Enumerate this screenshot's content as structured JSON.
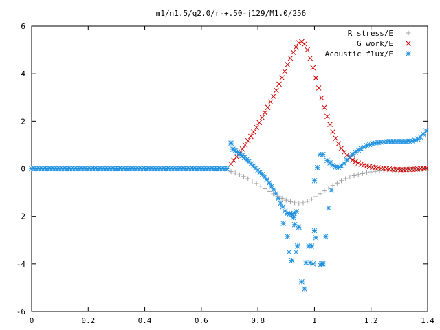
{
  "chart_data": {
    "type": "scatter",
    "title": "m1/n1.5/q2.0/r-+.50-j129/M1.0/256",
    "xlabel": "",
    "ylabel": "",
    "xlim": [
      0,
      1.4
    ],
    "ylim": [
      -6,
      6
    ],
    "x_ticks": [
      "0",
      "0.2",
      "0.4",
      "0.6",
      "0.8",
      "1",
      "1.2",
      "1.4"
    ],
    "y_ticks": [
      "6",
      "4",
      "2",
      "0",
      "-2",
      "-4",
      "-6"
    ],
    "x_tick_values": [
      0,
      0.2,
      0.4,
      0.6,
      0.8,
      1.0,
      1.2,
      1.4
    ],
    "y_tick_values": [
      6,
      4,
      2,
      0,
      -2,
      -4,
      -6
    ],
    "grid": false,
    "legend_position": "top-right",
    "series": [
      {
        "name": "R stress/E",
        "marker": "plus",
        "color": "#a0a0a0",
        "points": [
          [
            0.705,
            -0.12
          ],
          [
            0.72,
            -0.18
          ],
          [
            0.735,
            -0.25
          ],
          [
            0.75,
            -0.33
          ],
          [
            0.765,
            -0.42
          ],
          [
            0.78,
            -0.52
          ],
          [
            0.795,
            -0.62
          ],
          [
            0.81,
            -0.73
          ],
          [
            0.825,
            -0.84
          ],
          [
            0.84,
            -0.95
          ],
          [
            0.855,
            -1.05
          ],
          [
            0.87,
            -1.15
          ],
          [
            0.885,
            -1.24
          ],
          [
            0.9,
            -1.32
          ],
          [
            0.915,
            -1.39
          ],
          [
            0.93,
            -1.43
          ],
          [
            0.945,
            -1.45
          ],
          [
            0.96,
            -1.43
          ],
          [
            0.975,
            -1.37
          ],
          [
            0.99,
            -1.28
          ],
          [
            1.005,
            -1.17
          ],
          [
            1.02,
            -1.05
          ],
          [
            1.035,
            -0.93
          ],
          [
            1.05,
            -0.81
          ],
          [
            1.065,
            -0.7
          ],
          [
            1.08,
            -0.6
          ],
          [
            1.095,
            -0.5
          ],
          [
            1.11,
            -0.42
          ],
          [
            1.125,
            -0.35
          ],
          [
            1.14,
            -0.29
          ],
          [
            1.155,
            -0.24
          ],
          [
            1.17,
            -0.2
          ],
          [
            1.185,
            -0.16
          ],
          [
            1.2,
            -0.13
          ],
          [
            1.215,
            -0.11
          ],
          [
            1.23,
            -0.09
          ],
          [
            1.245,
            -0.07
          ],
          [
            1.26,
            -0.06
          ],
          [
            1.275,
            -0.05
          ],
          [
            1.29,
            -0.04
          ],
          [
            1.305,
            -0.03
          ],
          [
            1.32,
            -0.03
          ],
          [
            1.335,
            -0.02
          ],
          [
            1.35,
            -0.02
          ],
          [
            1.365,
            -0.02
          ],
          [
            1.38,
            -0.01
          ],
          [
            1.395,
            -0.01
          ]
        ]
      },
      {
        "name": "G work/E",
        "marker": "cross",
        "color": "#d00000",
        "points": [
          [
            0.705,
            0.2
          ],
          [
            0.715,
            0.35
          ],
          [
            0.725,
            0.5
          ],
          [
            0.735,
            0.66
          ],
          [
            0.745,
            0.83
          ],
          [
            0.755,
            1.0
          ],
          [
            0.765,
            1.18
          ],
          [
            0.775,
            1.36
          ],
          [
            0.785,
            1.55
          ],
          [
            0.795,
            1.74
          ],
          [
            0.805,
            1.94
          ],
          [
            0.815,
            2.15
          ],
          [
            0.825,
            2.36
          ],
          [
            0.835,
            2.58
          ],
          [
            0.845,
            2.81
          ],
          [
            0.855,
            3.05
          ],
          [
            0.865,
            3.3
          ],
          [
            0.875,
            3.56
          ],
          [
            0.885,
            3.83
          ],
          [
            0.895,
            4.1
          ],
          [
            0.905,
            4.38
          ],
          [
            0.915,
            4.65
          ],
          [
            0.925,
            4.9
          ],
          [
            0.935,
            5.12
          ],
          [
            0.945,
            5.3
          ],
          [
            0.955,
            5.35
          ],
          [
            0.965,
            5.25
          ],
          [
            0.975,
            5.0
          ],
          [
            0.985,
            4.65
          ],
          [
            0.995,
            4.25
          ],
          [
            1.005,
            3.82
          ],
          [
            1.015,
            3.4
          ],
          [
            1.025,
            2.98
          ],
          [
            1.035,
            2.58
          ],
          [
            1.045,
            2.2
          ],
          [
            1.055,
            1.86
          ],
          [
            1.065,
            1.55
          ],
          [
            1.075,
            1.28
          ],
          [
            1.085,
            1.05
          ],
          [
            1.095,
            0.86
          ],
          [
            1.105,
            0.7
          ],
          [
            1.115,
            0.57
          ],
          [
            1.125,
            0.46
          ],
          [
            1.135,
            0.37
          ],
          [
            1.145,
            0.3
          ],
          [
            1.155,
            0.24
          ],
          [
            1.165,
            0.19
          ],
          [
            1.175,
            0.15
          ],
          [
            1.185,
            0.12
          ],
          [
            1.195,
            0.09
          ],
          [
            1.205,
            0.07
          ],
          [
            1.215,
            0.05
          ],
          [
            1.225,
            0.04
          ],
          [
            1.235,
            0.02
          ],
          [
            1.245,
            0.01
          ],
          [
            1.255,
            0.0
          ],
          [
            1.265,
            -0.01
          ],
          [
            1.275,
            -0.02
          ],
          [
            1.285,
            -0.03
          ],
          [
            1.295,
            -0.03
          ],
          [
            1.305,
            -0.04
          ],
          [
            1.315,
            -0.04
          ],
          [
            1.325,
            -0.03
          ],
          [
            1.335,
            -0.03
          ],
          [
            1.345,
            -0.02
          ],
          [
            1.355,
            -0.02
          ],
          [
            1.365,
            -0.01
          ],
          [
            1.375,
            0.0
          ],
          [
            1.385,
            0.01
          ],
          [
            1.395,
            0.02
          ]
        ]
      },
      {
        "name": "Acoustic flux/E",
        "marker": "star",
        "color": "#1e90e0",
        "points": [
          [
            0.0,
            0.0
          ],
          [
            0.01,
            0.0
          ],
          [
            0.02,
            0.0
          ],
          [
            0.03,
            0.0
          ],
          [
            0.04,
            0.0
          ],
          [
            0.05,
            0.0
          ],
          [
            0.06,
            0.0
          ],
          [
            0.07,
            0.0
          ],
          [
            0.08,
            0.0
          ],
          [
            0.09,
            0.0
          ],
          [
            0.1,
            0.0
          ],
          [
            0.11,
            0.0
          ],
          [
            0.12,
            0.0
          ],
          [
            0.13,
            0.0
          ],
          [
            0.14,
            0.0
          ],
          [
            0.15,
            0.0
          ],
          [
            0.16,
            0.0
          ],
          [
            0.17,
            0.0
          ],
          [
            0.18,
            0.0
          ],
          [
            0.19,
            0.0
          ],
          [
            0.2,
            0.0
          ],
          [
            0.21,
            0.0
          ],
          [
            0.22,
            0.0
          ],
          [
            0.23,
            0.0
          ],
          [
            0.24,
            0.0
          ],
          [
            0.25,
            0.0
          ],
          [
            0.26,
            0.0
          ],
          [
            0.27,
            0.0
          ],
          [
            0.28,
            0.0
          ],
          [
            0.29,
            0.0
          ],
          [
            0.3,
            0.0
          ],
          [
            0.31,
            0.0
          ],
          [
            0.32,
            0.0
          ],
          [
            0.33,
            0.0
          ],
          [
            0.34,
            0.0
          ],
          [
            0.35,
            0.0
          ],
          [
            0.36,
            0.0
          ],
          [
            0.37,
            0.0
          ],
          [
            0.38,
            0.0
          ],
          [
            0.39,
            0.0
          ],
          [
            0.4,
            0.0
          ],
          [
            0.41,
            0.0
          ],
          [
            0.42,
            0.0
          ],
          [
            0.43,
            0.0
          ],
          [
            0.44,
            0.0
          ],
          [
            0.45,
            0.0
          ],
          [
            0.46,
            0.0
          ],
          [
            0.47,
            0.0
          ],
          [
            0.48,
            0.0
          ],
          [
            0.49,
            0.0
          ],
          [
            0.5,
            0.0
          ],
          [
            0.51,
            0.0
          ],
          [
            0.52,
            0.0
          ],
          [
            0.53,
            0.0
          ],
          [
            0.54,
            0.0
          ],
          [
            0.55,
            0.0
          ],
          [
            0.56,
            0.0
          ],
          [
            0.57,
            0.0
          ],
          [
            0.58,
            0.0
          ],
          [
            0.59,
            0.0
          ],
          [
            0.6,
            0.0
          ],
          [
            0.61,
            0.0
          ],
          [
            0.62,
            0.0
          ],
          [
            0.63,
            0.0
          ],
          [
            0.64,
            0.0
          ],
          [
            0.65,
            0.0
          ],
          [
            0.66,
            0.0
          ],
          [
            0.67,
            0.0
          ],
          [
            0.68,
            0.0
          ],
          [
            0.69,
            0.0
          ],
          [
            0.705,
            1.08
          ],
          [
            0.712,
            0.82
          ],
          [
            0.72,
            0.76
          ],
          [
            0.728,
            0.7
          ],
          [
            0.736,
            0.62
          ],
          [
            0.744,
            0.55
          ],
          [
            0.752,
            0.47
          ],
          [
            0.76,
            0.38
          ],
          [
            0.768,
            0.3
          ],
          [
            0.776,
            0.21
          ],
          [
            0.784,
            0.12
          ],
          [
            0.792,
            0.03
          ],
          [
            0.8,
            -0.06
          ],
          [
            0.808,
            -0.15
          ],
          [
            0.816,
            -0.24
          ],
          [
            0.824,
            -0.34
          ],
          [
            0.832,
            -0.46
          ],
          [
            0.84,
            -0.6
          ],
          [
            0.848,
            -0.74
          ],
          [
            0.856,
            -0.88
          ],
          [
            0.864,
            -1.05
          ],
          [
            0.872,
            -1.25
          ],
          [
            0.88,
            -1.45
          ],
          [
            0.888,
            -1.6
          ],
          [
            0.896,
            -1.78
          ],
          [
            0.904,
            -1.88
          ],
          [
            0.912,
            -1.9
          ],
          [
            0.92,
            -1.93
          ],
          [
            0.928,
            -1.88
          ],
          [
            0.936,
            -1.8
          ],
          [
            0.89,
            -2.3
          ],
          [
            0.905,
            -2.85
          ],
          [
            0.91,
            -3.5
          ],
          [
            0.92,
            -3.85
          ],
          [
            0.925,
            -2.05
          ],
          [
            0.93,
            -2.35
          ],
          [
            0.935,
            -3.5
          ],
          [
            0.94,
            -3.25
          ],
          [
            0.945,
            -2.45
          ],
          [
            0.955,
            -4.75
          ],
          [
            0.965,
            -5.05
          ],
          [
            0.97,
            -3.95
          ],
          [
            0.98,
            -3.25
          ],
          [
            0.985,
            -3.95
          ],
          [
            0.99,
            -3.25
          ],
          [
            0.995,
            -4.0
          ],
          [
            1.0,
            -2.6
          ],
          [
            1.005,
            -2.9
          ],
          [
            1.02,
            -4.05
          ],
          [
            1.025,
            -4.0
          ],
          [
            1.03,
            -4.0
          ],
          [
            1.04,
            -2.85
          ],
          [
            1.05,
            -1.65
          ],
          [
            1.0,
            -0.5
          ],
          [
            1.01,
            0.05
          ],
          [
            1.02,
            0.6
          ],
          [
            1.03,
            0.6
          ],
          [
            1.045,
            0.35
          ],
          [
            1.055,
            0.25
          ],
          [
            1.06,
            -0.9
          ],
          [
            1.065,
            0.15
          ],
          [
            1.075,
            0.08
          ],
          [
            1.085,
            0.06
          ],
          [
            1.095,
            0.12
          ],
          [
            1.105,
            0.22
          ],
          [
            1.115,
            0.36
          ],
          [
            1.125,
            0.5
          ],
          [
            1.135,
            0.6
          ],
          [
            1.145,
            0.7
          ],
          [
            1.155,
            0.78
          ],
          [
            1.165,
            0.85
          ],
          [
            1.175,
            0.91
          ],
          [
            1.185,
            0.97
          ],
          [
            1.195,
            1.01
          ],
          [
            1.205,
            1.05
          ],
          [
            1.215,
            1.08
          ],
          [
            1.225,
            1.1
          ],
          [
            1.235,
            1.12
          ],
          [
            1.245,
            1.13
          ],
          [
            1.255,
            1.14
          ],
          [
            1.265,
            1.15
          ],
          [
            1.275,
            1.15
          ],
          [
            1.285,
            1.15
          ],
          [
            1.295,
            1.15
          ],
          [
            1.305,
            1.15
          ],
          [
            1.315,
            1.15
          ],
          [
            1.325,
            1.15
          ],
          [
            1.335,
            1.16
          ],
          [
            1.345,
            1.17
          ],
          [
            1.355,
            1.2
          ],
          [
            1.365,
            1.25
          ],
          [
            1.375,
            1.33
          ],
          [
            1.385,
            1.45
          ],
          [
            1.395,
            1.6
          ]
        ]
      }
    ]
  }
}
